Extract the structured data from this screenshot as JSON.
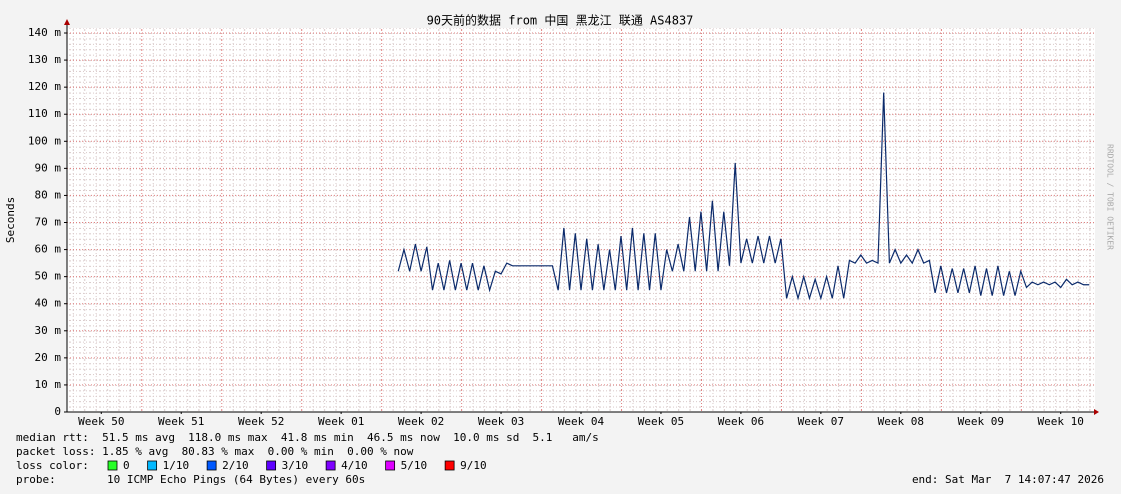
{
  "chart_data": {
    "type": "line",
    "title": "90天前的数据 from  中国 黑龙江 联通 AS4837",
    "ylabel": "Seconds",
    "watermark": "RRDTOOL / TOBI OETIKER",
    "xlim": [
      0,
      90
    ],
    "xticks": [
      {
        "value": 3,
        "label": "Week 50"
      },
      {
        "value": 10,
        "label": "Week 51"
      },
      {
        "value": 17,
        "label": "Week 52"
      },
      {
        "value": 24,
        "label": "Week 01"
      },
      {
        "value": 31,
        "label": "Week 02"
      },
      {
        "value": 38,
        "label": "Week 03"
      },
      {
        "value": 45,
        "label": "Week 04"
      },
      {
        "value": 52,
        "label": "Week 05"
      },
      {
        "value": 59,
        "label": "Week 06"
      },
      {
        "value": 66,
        "label": "Week 07"
      },
      {
        "value": 73,
        "label": "Week 08"
      },
      {
        "value": 80,
        "label": "Week 09"
      },
      {
        "value": 87,
        "label": "Week 10"
      }
    ],
    "ylim": [
      0,
      0.142
    ],
    "yticks": [
      0,
      {
        "value": 0.01,
        "label": "10 m"
      },
      {
        "value": 0.02,
        "label": "20 m"
      },
      {
        "value": 0.03,
        "label": "30 m"
      },
      {
        "value": 0.04,
        "label": "40 m"
      },
      {
        "value": 0.05,
        "label": "50 m"
      },
      {
        "value": 0.06,
        "label": "60 m"
      },
      {
        "value": 0.07,
        "label": "70 m"
      },
      {
        "value": 0.08,
        "label": "80 m"
      },
      {
        "value": 0.09,
        "label": "90 m"
      },
      {
        "value": 0.1,
        "label": "100 m"
      },
      {
        "value": 0.11,
        "label": "110 m"
      },
      {
        "value": 0.12,
        "label": "120 m"
      },
      {
        "value": 0.13,
        "label": "130 m"
      },
      {
        "value": 0.14,
        "label": "140 m"
      }
    ],
    "grid": true,
    "x": [
      29,
      29.5,
      30,
      30.5,
      31,
      31.5,
      32,
      32.5,
      33,
      33.5,
      34,
      34.5,
      35,
      35.5,
      36,
      36.5,
      37,
      37.5,
      38,
      38.5,
      39,
      39.5,
      40,
      40.5,
      41,
      41.5,
      42,
      42.5,
      43,
      43.5,
      44,
      44.5,
      45,
      45.5,
      46,
      46.5,
      47,
      47.5,
      48,
      48.5,
      49,
      49.5,
      50,
      50.5,
      51,
      51.5,
      52,
      52.5,
      53,
      53.5,
      54,
      54.5,
      55,
      55.5,
      56,
      56.5,
      57,
      57.5,
      58,
      58.5,
      59,
      59.5,
      60,
      60.5,
      61,
      61.5,
      62,
      62.5,
      63,
      63.5,
      64,
      64.5,
      65,
      65.5,
      66,
      66.5,
      67,
      67.5,
      68,
      68.5,
      69,
      69.5,
      70,
      70.5,
      71,
      71.5,
      72,
      72.5,
      73,
      73.5,
      74,
      74.5,
      75,
      75.5,
      76,
      76.5,
      77,
      77.5,
      78,
      78.5,
      79,
      79.5,
      80,
      80.5,
      81,
      81.5,
      82,
      82.5,
      83,
      83.5,
      84,
      84.5,
      85,
      85.5,
      86,
      86.5,
      87,
      87.5,
      88,
      88.5,
      89,
      89.5
    ],
    "series": [
      {
        "color": "#0b2a6b",
        "values": [
          0.052,
          0.06,
          0.052,
          0.062,
          0.052,
          0.061,
          0.045,
          0.055,
          0.045,
          0.056,
          0.045,
          0.055,
          0.045,
          0.055,
          0.045,
          0.054,
          0.045,
          0.052,
          0.051,
          0.055,
          0.054,
          0.054,
          0.054,
          0.054,
          0.054,
          0.054,
          0.054,
          0.054,
          0.045,
          0.068,
          0.045,
          0.066,
          0.045,
          0.064,
          0.045,
          0.062,
          0.045,
          0.06,
          0.045,
          0.065,
          0.045,
          0.068,
          0.045,
          0.066,
          0.045,
          0.066,
          0.045,
          0.06,
          0.052,
          0.062,
          0.052,
          0.072,
          0.052,
          0.074,
          0.052,
          0.078,
          0.052,
          0.074,
          0.054,
          0.092,
          0.055,
          0.064,
          0.055,
          0.065,
          0.055,
          0.065,
          0.055,
          0.064,
          0.042,
          0.05,
          0.042,
          0.05,
          0.042,
          0.049,
          0.042,
          0.05,
          0.042,
          0.054,
          0.042,
          0.056,
          0.055,
          0.058,
          0.055,
          0.056,
          0.055,
          0.118,
          0.055,
          0.06,
          0.055,
          0.058,
          0.055,
          0.06,
          0.055,
          0.056,
          0.044,
          0.054,
          0.044,
          0.053,
          0.044,
          0.053,
          0.044,
          0.054,
          0.043,
          0.053,
          0.043,
          0.054,
          0.043,
          0.052,
          0.043,
          0.052,
          0.046,
          0.048,
          0.047,
          0.048,
          0.047,
          0.048,
          0.046,
          0.049,
          0.047,
          0.048,
          0.047,
          0.047
        ]
      }
    ],
    "median_rtt": "median rtt:  51.5 ms avg  118.0 ms max  41.8 ms min  46.5 ms now  10.0 ms sd  5.1   am/s",
    "packet_loss": "packet loss: 1.85 % avg  80.83 % max  0.00 % min  0.00 % now",
    "loss_color_label": "loss color:",
    "loss_colors": [
      {
        "label": "0",
        "color": "#26ff26"
      },
      {
        "label": "1/10",
        "color": "#00b8ff"
      },
      {
        "label": "2/10",
        "color": "#0059ff"
      },
      {
        "label": "3/10",
        "color": "#5e00ff"
      },
      {
        "label": "4/10",
        "color": "#7e00ff"
      },
      {
        "label": "5/10",
        "color": "#dd00ff"
      },
      {
        "label": "9/10",
        "color": "#ff0000"
      }
    ],
    "probe_label": "probe:",
    "probe": "10 ICMP Echo Pings (64 Bytes) every 60s",
    "end": "end: Sat Mar  7 14:07:47 2026"
  }
}
